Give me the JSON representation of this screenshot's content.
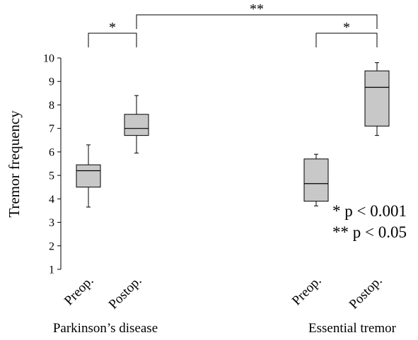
{
  "chart_data": {
    "type": "box",
    "ylabel": "Tremor frequency",
    "ylim": [
      1,
      10
    ],
    "yticks": [
      1,
      2,
      3,
      4,
      5,
      6,
      7,
      8,
      9,
      10
    ],
    "categories": [
      "Preop.",
      "Postop.",
      "Preop.",
      "Postop."
    ],
    "groups": [
      {
        "label": "Parkinson’s disease",
        "categories": [
          0,
          1
        ]
      },
      {
        "label": "Essential tremor",
        "categories": [
          2,
          3
        ]
      }
    ],
    "boxes": [
      {
        "category": "Preop.",
        "group": "Parkinson’s disease",
        "min": 3.65,
        "q1": 4.5,
        "median": 5.2,
        "q3": 5.45,
        "max": 6.3
      },
      {
        "category": "Postop.",
        "group": "Parkinson’s disease",
        "min": 5.95,
        "q1": 6.7,
        "median": 7.0,
        "q3": 7.6,
        "max": 8.4
      },
      {
        "category": "Preop.",
        "group": "Essential tremor",
        "min": 3.7,
        "q1": 3.9,
        "median": 4.65,
        "q3": 5.7,
        "max": 5.9
      },
      {
        "category": "Postop.",
        "group": "Essential tremor",
        "min": 6.7,
        "q1": 7.1,
        "median": 8.75,
        "q3": 9.45,
        "max": 9.8
      }
    ],
    "box_color": "#c8c8c8",
    "significance": [
      {
        "from": 0,
        "to": 1,
        "label": "*"
      },
      {
        "from": 1,
        "to": 3,
        "label": "**"
      },
      {
        "from": 2,
        "to": 3,
        "label": "*"
      }
    ],
    "legend_notes": [
      "* p < 0.001",
      "** p < 0.05"
    ],
    "grid": false
  }
}
